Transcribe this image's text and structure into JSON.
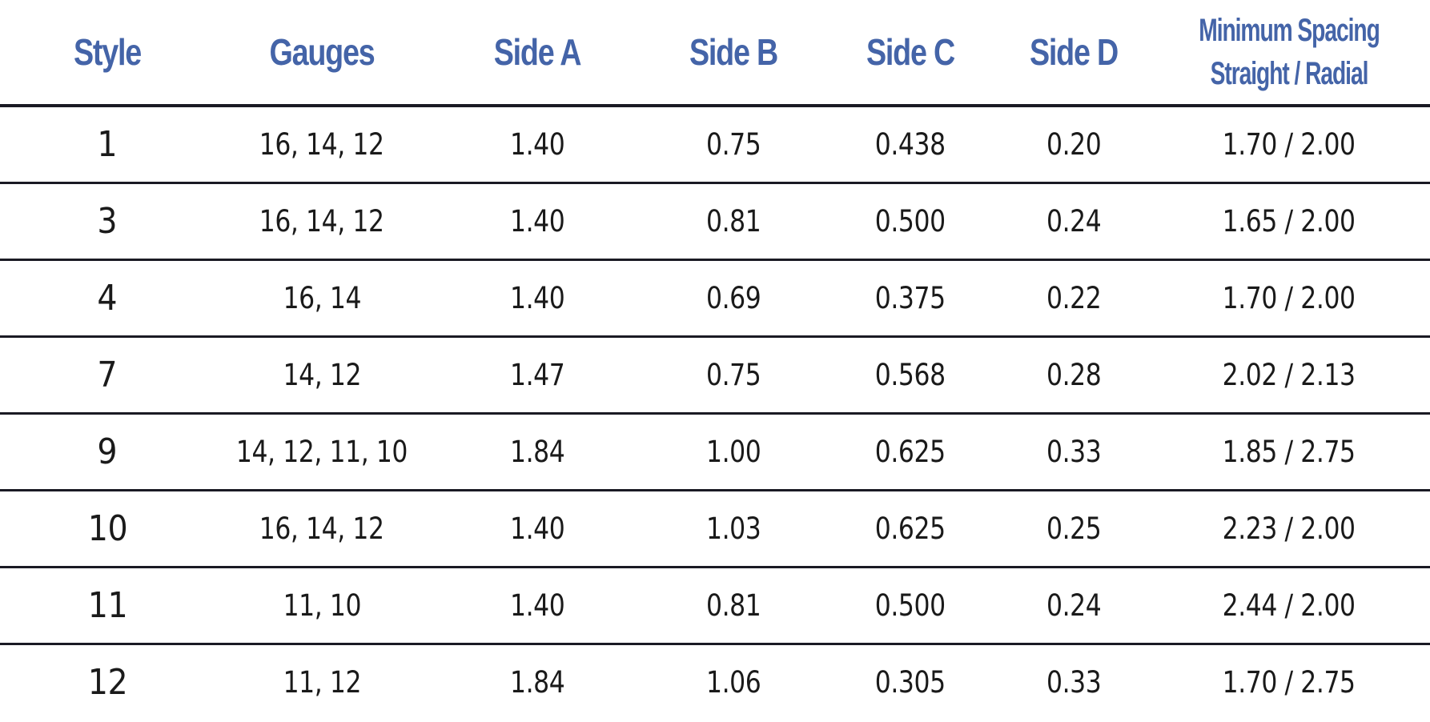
{
  "headers": {
    "style": "Style",
    "gauges": "Gauges",
    "side_a": "Side A",
    "side_b": "Side B",
    "side_c": "Side C",
    "side_d": "Side D",
    "min_spacing_line1": "Minimum Spacing",
    "min_spacing_line2": "Straight / Radial"
  },
  "rows": [
    {
      "style": "1",
      "gauges": "16, 14, 12",
      "side_a": "1.40",
      "side_b": "0.75",
      "side_c": "0.438",
      "side_d": "0.20",
      "min_spacing": "1.70 / 2.00"
    },
    {
      "style": "3",
      "gauges": "16, 14, 12",
      "side_a": "1.40",
      "side_b": "0.81",
      "side_c": "0.500",
      "side_d": "0.24",
      "min_spacing": "1.65 / 2.00"
    },
    {
      "style": "4",
      "gauges": "16, 14",
      "side_a": "1.40",
      "side_b": "0.69",
      "side_c": "0.375",
      "side_d": "0.22",
      "min_spacing": "1.70 / 2.00"
    },
    {
      "style": "7",
      "gauges": "14, 12",
      "side_a": "1.47",
      "side_b": "0.75",
      "side_c": "0.568",
      "side_d": "0.28",
      "min_spacing": "2.02 / 2.13"
    },
    {
      "style": "9",
      "gauges": "14, 12, 11, 10",
      "side_a": "1.84",
      "side_b": "1.00",
      "side_c": "0.625",
      "side_d": "0.33",
      "min_spacing": "1.85 / 2.75"
    },
    {
      "style": "10",
      "gauges": "16, 14, 12",
      "side_a": "1.40",
      "side_b": "1.03",
      "side_c": "0.625",
      "side_d": "0.25",
      "min_spacing": "2.23 / 2.00"
    },
    {
      "style": "11",
      "gauges": "11, 10",
      "side_a": "1.40",
      "side_b": "0.81",
      "side_c": "0.500",
      "side_d": "0.24",
      "min_spacing": "2.44 / 2.00"
    },
    {
      "style": "12",
      "gauges": "11, 12",
      "side_a": "1.84",
      "side_b": "1.06",
      "side_c": "0.305",
      "side_d": "0.33",
      "min_spacing": "1.70 / 2.75"
    }
  ],
  "colors": {
    "header_text": "#4464a8",
    "body_text": "#1a1a1a",
    "rule": "#1a1a24"
  }
}
